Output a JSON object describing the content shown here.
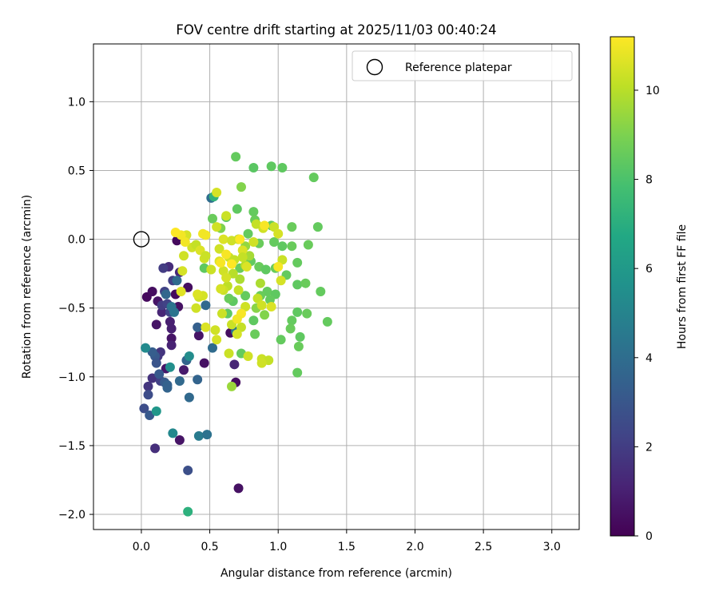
{
  "chart_data": {
    "type": "scatter",
    "title": "FOV centre drift starting at 2025/11/03 00:40:24",
    "xlabel": "Angular distance from reference (arcmin)",
    "ylabel": "Rotation from reference (arcmin)",
    "xlim": [
      -0.35,
      3.2
    ],
    "ylim": [
      -2.11,
      1.42
    ],
    "xticks": [
      0.0,
      0.5,
      1.0,
      1.5,
      2.0,
      2.5,
      3.0
    ],
    "xtick_labels": [
      "0.0",
      "0.5",
      "1.0",
      "1.5",
      "2.0",
      "2.5",
      "3.0"
    ],
    "yticks": [
      -2.0,
      -1.5,
      -1.0,
      -0.5,
      0.0,
      0.5,
      1.0
    ],
    "ytick_labels": [
      "−2.0",
      "−1.5",
      "−1.0",
      "−0.5",
      "0.0",
      "0.5",
      "1.0"
    ],
    "grid": true,
    "legend": {
      "placement": "top-right",
      "entries": [
        "Reference platepar"
      ]
    },
    "reference_point": {
      "label": "Reference platepar",
      "x": 0.0,
      "y": 0.0
    },
    "colorbar": {
      "label": "Hours from first FF file",
      "range": [
        0,
        11.2
      ],
      "ticks": [
        0,
        2,
        4,
        6,
        8,
        10
      ],
      "tick_labels": [
        "0",
        "2",
        "4",
        "6",
        "8",
        "10"
      ],
      "colormap": "viridis"
    },
    "series": [
      {
        "name": "FOV centre drift",
        "points": [
          [
            0.26,
            -0.01,
            0.3
          ],
          [
            0.04,
            -0.42,
            0.3
          ],
          [
            0.08,
            -0.38,
            0.4
          ],
          [
            0.12,
            -0.45,
            0.6
          ],
          [
            0.27,
            -0.49,
            0.5
          ],
          [
            0.11,
            -0.62,
            0.6
          ],
          [
            0.25,
            -0.4,
            0.3
          ],
          [
            0.34,
            -0.35,
            0.4
          ],
          [
            0.22,
            -0.72,
            0.6
          ],
          [
            0.18,
            -0.94,
            0.7
          ],
          [
            0.31,
            -0.95,
            0.8
          ],
          [
            0.46,
            -0.9,
            0.5
          ],
          [
            0.42,
            -0.7,
            0.6
          ],
          [
            0.69,
            -1.04,
            0.4
          ],
          [
            0.28,
            -1.46,
            0.6
          ],
          [
            0.71,
            -1.81,
            0.5
          ],
          [
            0.65,
            -0.68,
            0.4
          ],
          [
            0.68,
            -0.91,
            1.2
          ],
          [
            0.21,
            -0.6,
            1.0
          ],
          [
            0.22,
            -0.77,
            1.1
          ],
          [
            0.22,
            -0.65,
            1.0
          ],
          [
            0.2,
            -0.2,
            1.4
          ],
          [
            0.28,
            -0.24,
            1.3
          ],
          [
            0.15,
            -0.53,
            1.2
          ],
          [
            0.1,
            -1.52,
            1.5
          ],
          [
            0.08,
            -1.01,
            1.6
          ],
          [
            0.14,
            -0.82,
            1.7
          ],
          [
            0.05,
            -1.07,
            1.7
          ],
          [
            0.12,
            -0.85,
            1.8
          ],
          [
            0.16,
            -0.21,
            2.0
          ],
          [
            0.23,
            -0.3,
            2.1
          ],
          [
            0.17,
            -0.38,
            2.2
          ],
          [
            0.15,
            -0.48,
            2.0
          ],
          [
            0.19,
            -0.47,
            2.2
          ],
          [
            0.21,
            -0.53,
            2.3
          ],
          [
            0.14,
            -1.03,
            2.1
          ],
          [
            0.05,
            -1.13,
            2.6
          ],
          [
            0.02,
            -1.23,
            2.6
          ],
          [
            0.34,
            -1.68,
            2.7
          ],
          [
            0.06,
            -1.28,
            3.1
          ],
          [
            0.1,
            -0.85,
            3.1
          ],
          [
            0.08,
            -0.82,
            3.3
          ],
          [
            0.11,
            -0.9,
            2.9
          ],
          [
            0.13,
            -0.98,
            3.1
          ],
          [
            0.19,
            -1.08,
            3.6
          ],
          [
            0.17,
            -1.04,
            3.2
          ],
          [
            0.19,
            -1.06,
            3.5
          ],
          [
            0.28,
            -1.03,
            3.8
          ],
          [
            0.33,
            -0.88,
            3.6
          ],
          [
            0.35,
            -1.15,
            3.8
          ],
          [
            0.41,
            -0.64,
            3.4
          ],
          [
            0.47,
            -0.48,
            3.8
          ],
          [
            0.52,
            -0.79,
            3.9
          ],
          [
            0.41,
            -1.02,
            3.6
          ],
          [
            0.26,
            -0.3,
            3.9
          ],
          [
            0.18,
            -0.4,
            3.7
          ],
          [
            0.22,
            -0.49,
            4.3
          ],
          [
            0.24,
            -0.53,
            4.3
          ],
          [
            0.42,
            -1.43,
            4.6
          ],
          [
            0.48,
            -1.42,
            4.2
          ],
          [
            0.51,
            0.3,
            4.0
          ],
          [
            0.69,
            -0.67,
            4.5
          ],
          [
            0.23,
            -1.41,
            5.2
          ],
          [
            0.03,
            -0.79,
            5.3
          ],
          [
            0.21,
            -0.93,
            5.5
          ],
          [
            0.11,
            -1.25,
            5.9
          ],
          [
            0.35,
            -0.85,
            5.4
          ],
          [
            0.34,
            -1.98,
            7.1
          ],
          [
            0.53,
            0.31,
            7.2
          ],
          [
            0.69,
            0.6,
            8.5
          ],
          [
            0.82,
            0.52,
            8.3
          ],
          [
            0.95,
            0.53,
            8.4
          ],
          [
            1.03,
            0.52,
            8.4
          ],
          [
            1.26,
            0.45,
            8.5
          ],
          [
            0.73,
            0.38,
            9.1
          ],
          [
            0.52,
            0.15,
            8.6
          ],
          [
            0.62,
            0.16,
            8.3
          ],
          [
            0.7,
            0.22,
            8.4
          ],
          [
            0.82,
            0.2,
            8.5
          ],
          [
            0.83,
            0.14,
            8.6
          ],
          [
            0.95,
            0.1,
            8.4
          ],
          [
            1.1,
            0.09,
            8.6
          ],
          [
            1.29,
            0.09,
            8.5
          ],
          [
            1.22,
            -0.04,
            8.6
          ],
          [
            0.71,
            0.0,
            8.3
          ],
          [
            0.78,
            0.04,
            8.5
          ],
          [
            0.86,
            -0.03,
            8.6
          ],
          [
            0.97,
            -0.02,
            8.5
          ],
          [
            1.03,
            -0.05,
            8.4
          ],
          [
            1.1,
            -0.05,
            8.6
          ],
          [
            1.14,
            -0.17,
            8.5
          ],
          [
            0.72,
            -0.21,
            8.6
          ],
          [
            0.8,
            -0.16,
            8.5
          ],
          [
            0.86,
            -0.2,
            8.6
          ],
          [
            0.91,
            -0.22,
            8.4
          ],
          [
            0.98,
            -0.21,
            8.6
          ],
          [
            1.06,
            -0.26,
            8.5
          ],
          [
            1.14,
            -0.33,
            8.4
          ],
          [
            1.2,
            -0.32,
            8.6
          ],
          [
            1.31,
            -0.38,
            8.5
          ],
          [
            1.36,
            -0.6,
            8.5
          ],
          [
            1.14,
            -0.53,
            8.4
          ],
          [
            1.21,
            -0.54,
            8.6
          ],
          [
            1.1,
            -0.59,
            8.5
          ],
          [
            1.09,
            -0.65,
            8.6
          ],
          [
            1.16,
            -0.71,
            8.4
          ],
          [
            1.02,
            -0.73,
            8.5
          ],
          [
            1.15,
            -0.78,
            8.6
          ],
          [
            1.14,
            -0.97,
            8.5
          ],
          [
            0.82,
            -0.59,
            8.4
          ],
          [
            0.83,
            -0.69,
            8.6
          ],
          [
            0.76,
            -0.41,
            8.5
          ],
          [
            0.67,
            -0.45,
            8.4
          ],
          [
            0.73,
            -0.83,
            8.5
          ],
          [
            0.64,
            -0.43,
            8.6
          ],
          [
            0.92,
            -0.38,
            8.5
          ],
          [
            0.98,
            -0.4,
            8.4
          ],
          [
            0.87,
            -0.41,
            8.6
          ],
          [
            0.94,
            -0.44,
            8.5
          ],
          [
            0.63,
            -0.54,
            8.4
          ],
          [
            0.66,
            -1.07,
            9.5
          ],
          [
            0.46,
            -0.21,
            8.4
          ],
          [
            0.58,
            0.08,
            9.0
          ],
          [
            0.84,
            -0.5,
            9.2
          ],
          [
            0.9,
            -0.55,
            9.1
          ],
          [
            0.76,
            -0.05,
            9.4
          ],
          [
            0.79,
            -0.12,
            9.7
          ],
          [
            0.87,
            -0.32,
            9.8
          ],
          [
            0.85,
            -0.43,
            10.2
          ],
          [
            0.88,
            -0.48,
            10.4
          ],
          [
            0.95,
            -0.49,
            10.6
          ],
          [
            0.76,
            -0.19,
            10.0
          ],
          [
            0.72,
            -0.29,
            9.8
          ],
          [
            0.67,
            -0.25,
            10.0
          ],
          [
            0.63,
            -0.34,
            10.1
          ],
          [
            0.6,
            -0.37,
            10.3
          ],
          [
            0.71,
            -0.37,
            10.2
          ],
          [
            0.76,
            -0.49,
            10.4
          ],
          [
            0.73,
            -0.64,
            10.2
          ],
          [
            0.66,
            -0.62,
            10.3
          ],
          [
            0.7,
            -0.69,
            10.5
          ],
          [
            0.59,
            -0.54,
            10.3
          ],
          [
            0.54,
            -0.66,
            10.4
          ],
          [
            0.47,
            -0.64,
            10.6
          ],
          [
            0.55,
            -0.73,
            10.5
          ],
          [
            0.64,
            -0.83,
            10.3
          ],
          [
            0.78,
            -0.85,
            10.4
          ],
          [
            0.88,
            -0.87,
            10.3
          ],
          [
            0.93,
            -0.88,
            10.2
          ],
          [
            0.88,
            -0.9,
            10.4
          ],
          [
            0.62,
            0.17,
            10.3
          ],
          [
            0.55,
            0.34,
            10.5
          ],
          [
            0.37,
            -0.06,
            10.4
          ],
          [
            0.4,
            -0.04,
            10.2
          ],
          [
            0.43,
            -0.08,
            10.6
          ],
          [
            0.46,
            -0.14,
            10.4
          ],
          [
            0.51,
            -0.22,
            10.3
          ],
          [
            0.57,
            -0.16,
            10.6
          ],
          [
            0.6,
            -0.23,
            10.4
          ],
          [
            0.62,
            -0.28,
            10.5
          ],
          [
            0.57,
            -0.07,
            10.4
          ],
          [
            0.64,
            -0.13,
            10.3
          ],
          [
            0.68,
            -0.15,
            10.2
          ],
          [
            0.74,
            -0.08,
            10.6
          ],
          [
            0.82,
            -0.02,
            10.4
          ],
          [
            0.89,
            0.08,
            10.4
          ],
          [
            0.97,
            0.09,
            10.3
          ],
          [
            1.0,
            0.04,
            10.5
          ],
          [
            1.03,
            -0.15,
            10.3
          ],
          [
            1.02,
            -0.3,
            10.5
          ],
          [
            0.84,
            0.11,
            10.2
          ],
          [
            0.55,
            0.09,
            10.4
          ],
          [
            0.6,
            0.0,
            10.6
          ],
          [
            0.66,
            -0.01,
            10.4
          ],
          [
            0.71,
            0.0,
            10.3
          ],
          [
            0.74,
            -0.13,
            10.2
          ],
          [
            0.77,
            -0.2,
            10.6
          ],
          [
            0.58,
            -0.36,
            10.5
          ],
          [
            0.42,
            -0.42,
            10.4
          ],
          [
            0.45,
            -0.41,
            10.5
          ],
          [
            0.31,
            -0.12,
            10.4
          ],
          [
            0.33,
            0.03,
            10.5
          ],
          [
            0.47,
            -0.12,
            10.3
          ],
          [
            0.3,
            -0.23,
            10.5
          ],
          [
            0.4,
            -0.5,
            10.4
          ],
          [
            0.29,
            -0.38,
            10.7
          ],
          [
            0.41,
            -0.4,
            10.6
          ],
          [
            0.45,
            0.04,
            11.0
          ],
          [
            0.29,
            0.03,
            11.0
          ],
          [
            0.32,
            -0.02,
            11.0
          ],
          [
            0.47,
            0.03,
            11.0
          ],
          [
            0.58,
            -0.17,
            11.1
          ],
          [
            0.66,
            -0.18,
            11.2
          ],
          [
            0.73,
            -0.54,
            11.1
          ],
          [
            0.7,
            -0.58,
            11.0
          ],
          [
            0.62,
            -0.11,
            11.1
          ],
          [
            0.72,
            0.0,
            11.2
          ],
          [
            0.9,
            0.1,
            11.1
          ],
          [
            1.0,
            -0.2,
            11.1
          ],
          [
            0.25,
            0.05,
            11.2
          ]
        ]
      }
    ]
  }
}
